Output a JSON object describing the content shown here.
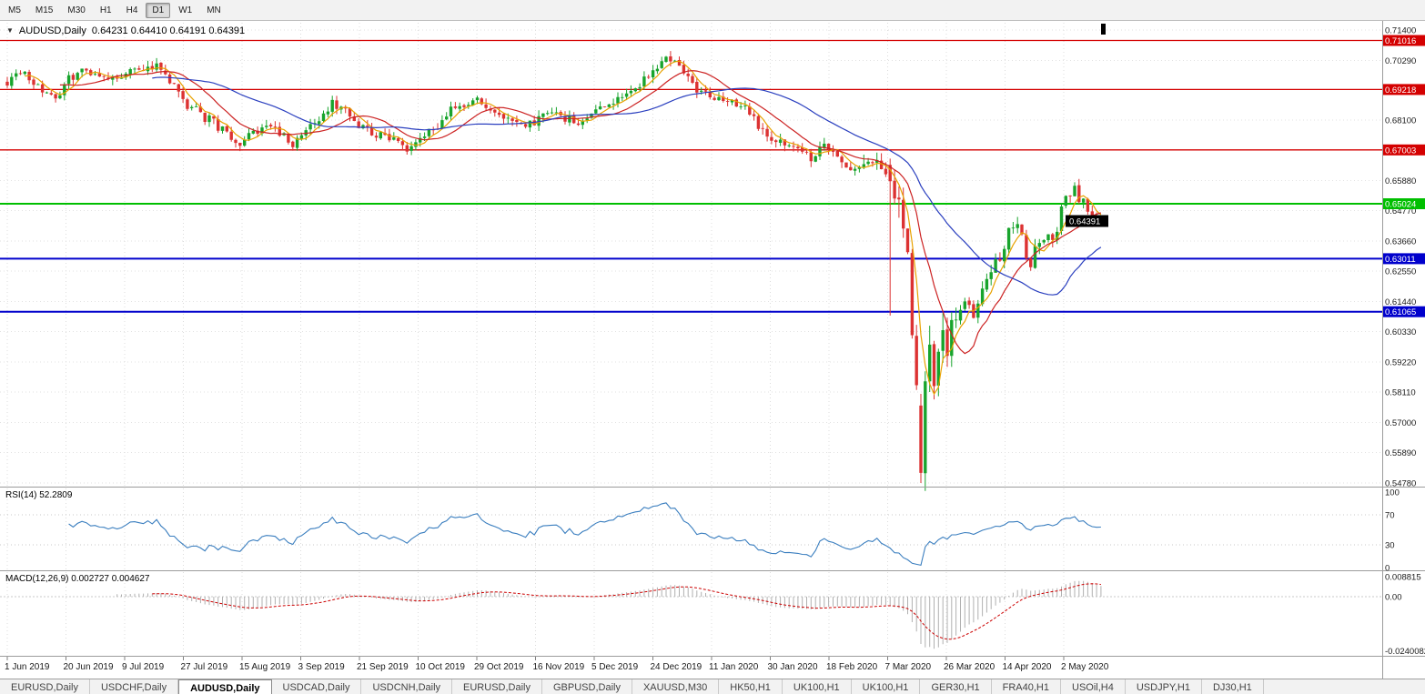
{
  "toolbar": {
    "timeframes": [
      "M5",
      "M15",
      "M30",
      "H1",
      "H4",
      "D1",
      "W1",
      "MN"
    ],
    "active": "D1"
  },
  "chart": {
    "title_symbol": "AUDUSD,Daily",
    "title_ohlc": "0.64231 0.64410 0.64191 0.64391",
    "current_price": "0.64391"
  },
  "rsi": {
    "label": "RSI(14) 52.2809",
    "value": 52.2809,
    "ticks": [
      {
        "label": "100",
        "value": 100
      },
      {
        "label": "70",
        "value": 70
      },
      {
        "label": "30",
        "value": 30
      },
      {
        "label": "0",
        "value": 0
      }
    ],
    "guides": [
      70,
      30
    ]
  },
  "macd": {
    "label": "MACD(12,26,9) 0.002727 0.004627",
    "ticks": [
      {
        "label": "0.008815",
        "value": 0.008815
      },
      {
        "label": "0.00",
        "value": 0
      },
      {
        "label": "-0.0240082",
        "value": -0.0240082
      }
    ]
  },
  "colors": {
    "up": "#18a42c",
    "down": "#dc3232",
    "ma_fast": "#e8a200",
    "ma_mid": "#cc2222",
    "ma_slow": "#2a3fbf",
    "rsi": "#3a7ebf",
    "macd_hist": "#b0b0b0",
    "macd_signal": "#cc0000",
    "grid": "#e2e2e2",
    "level_red": "#d40000",
    "level_green": "#00bf00",
    "level_blue": "#0000cc"
  },
  "chart_data": {
    "type": "candlestick",
    "symbol": "AUDUSD",
    "timeframe": "Daily",
    "bars": 250,
    "y_range": [
      0.5478,
      0.714
    ],
    "y_ticks": [
      "0.71400",
      "0.70290",
      "0.68100",
      "0.65880",
      "0.64770",
      "0.63660",
      "0.62550",
      "0.61440",
      "0.60330",
      "0.59220",
      "0.58110",
      "0.57000",
      "0.55890",
      "0.54780"
    ],
    "x_labels": [
      "1 Jun 2019",
      "20 Jun 2019",
      "9 Jul 2019",
      "27 Jul 2019",
      "15 Aug 2019",
      "3 Sep 2019",
      "21 Sep 2019",
      "10 Oct 2019",
      "29 Oct 2019",
      "16 Nov 2019",
      "5 Dec 2019",
      "24 Dec 2019",
      "11 Jan 2020",
      "30 Jan 2020",
      "18 Feb 2020",
      "7 Mar 2020",
      "26 Mar 2020",
      "14 Apr 2020",
      "2 May 2020"
    ],
    "current_ohlc": {
      "open": 0.64231,
      "high": 0.6441,
      "low": 0.64191,
      "close": 0.64391
    },
    "levels": [
      {
        "label": "0.71016",
        "price": 0.71016,
        "color": "#d40000",
        "width": 1.3
      },
      {
        "label": "0.69218",
        "price": 0.69218,
        "color": "#d40000",
        "width": 1.3
      },
      {
        "label": "0.67003",
        "price": 0.67003,
        "color": "#d40000",
        "width": 1.3
      },
      {
        "label": "0.65024",
        "price": 0.65024,
        "color": "#00bf00",
        "width": 2
      },
      {
        "label": "0.63011",
        "price": 0.63011,
        "color": "#0000cc",
        "width": 2
      },
      {
        "label": "0.61065",
        "price": 0.61065,
        "color": "#0000cc",
        "width": 2
      }
    ],
    "moving_averages": [
      {
        "period": 5,
        "color_key": "ma_fast"
      },
      {
        "period": 13,
        "color_key": "ma_mid"
      },
      {
        "period": 34,
        "color_key": "ma_slow"
      }
    ],
    "indicators": [
      {
        "name": "RSI",
        "period": 14,
        "value": 52.2809,
        "range": [
          0,
          100
        ],
        "guides": [
          70,
          30
        ]
      },
      {
        "name": "MACD",
        "params": "12,26,9",
        "macd": 0.002727,
        "signal": 0.004627,
        "scale_max": 0.008815,
        "scale_min": -0.0240082
      }
    ],
    "price_path_anchors": [
      [
        0,
        0.695
      ],
      [
        4,
        0.6985
      ],
      [
        8,
        0.6915
      ],
      [
        11,
        0.689
      ],
      [
        14,
        0.696
      ],
      [
        17,
        0.7
      ],
      [
        20,
        0.6985
      ],
      [
        23,
        0.6945
      ],
      [
        26,
        0.6975
      ],
      [
        29,
        0.7015
      ],
      [
        32,
        0.7
      ],
      [
        34,
        0.7015
      ],
      [
        37,
        0.695
      ],
      [
        40,
        0.688
      ],
      [
        44,
        0.683
      ],
      [
        47,
        0.68
      ],
      [
        50,
        0.676
      ],
      [
        53,
        0.6725
      ],
      [
        56,
        0.676
      ],
      [
        59,
        0.679
      ],
      [
        62,
        0.6765
      ],
      [
        65,
        0.6725
      ],
      [
        68,
        0.676
      ],
      [
        71,
        0.6815
      ],
      [
        74,
        0.687
      ],
      [
        77,
        0.684
      ],
      [
        80,
        0.679
      ],
      [
        84,
        0.6755
      ],
      [
        88,
        0.6735
      ],
      [
        91,
        0.6705
      ],
      [
        94,
        0.6745
      ],
      [
        97,
        0.6775
      ],
      [
        100,
        0.683
      ],
      [
        103,
        0.6865
      ],
      [
        106,
        0.689
      ],
      [
        109,
        0.687
      ],
      [
        112,
        0.684
      ],
      [
        115,
        0.6805
      ],
      [
        118,
        0.679
      ],
      [
        121,
        0.681
      ],
      [
        124,
        0.683
      ],
      [
        127,
        0.6815
      ],
      [
        130,
        0.6805
      ],
      [
        133,
        0.684
      ],
      [
        136,
        0.686
      ],
      [
        139,
        0.688
      ],
      [
        142,
        0.692
      ],
      [
        145,
        0.696
      ],
      [
        148,
        0.7
      ],
      [
        150,
        0.703
      ],
      [
        153,
        0.7005
      ],
      [
        156,
        0.6935
      ],
      [
        159,
        0.6905
      ],
      [
        162,
        0.6885
      ],
      [
        165,
        0.687
      ],
      [
        168,
        0.685
      ],
      [
        171,
        0.679
      ],
      [
        174,
        0.6745
      ],
      [
        177,
        0.671
      ],
      [
        180,
        0.669
      ],
      [
        183,
        0.667
      ],
      [
        186,
        0.6715
      ],
      [
        189,
        0.666
      ],
      [
        192,
        0.6625
      ],
      [
        195,
        0.664
      ],
      [
        198,
        0.6655
      ],
      [
        200,
        0.661
      ],
      [
        201,
        0.6585
      ],
      [
        202,
        0.652
      ],
      [
        203,
        0.648
      ],
      [
        204,
        0.639
      ],
      [
        205,
        0.627
      ],
      [
        206,
        0.607
      ],
      [
        207,
        0.58
      ],
      [
        208,
        0.5515
      ],
      [
        209,
        0.582
      ],
      [
        210,
        0.593
      ],
      [
        211,
        0.58
      ],
      [
        212,
        0.598
      ],
      [
        213,
        0.605
      ],
      [
        214,
        0.597
      ],
      [
        216,
        0.608
      ],
      [
        218,
        0.615
      ],
      [
        220,
        0.61
      ],
      [
        222,
        0.618
      ],
      [
        224,
        0.625
      ],
      [
        226,
        0.631
      ],
      [
        228,
        0.64
      ],
      [
        230,
        0.645
      ],
      [
        231,
        0.638
      ],
      [
        232,
        0.63
      ],
      [
        233,
        0.626
      ],
      [
        234,
        0.633
      ],
      [
        236,
        0.639
      ],
      [
        238,
        0.636
      ],
      [
        240,
        0.648
      ],
      [
        242,
        0.654
      ],
      [
        243,
        0.656
      ],
      [
        244,
        0.65
      ],
      [
        245,
        0.652
      ],
      [
        246,
        0.647
      ],
      [
        247,
        0.645
      ],
      [
        248,
        0.643
      ],
      [
        249,
        0.6439
      ]
    ]
  },
  "tabs": {
    "items": [
      "EURUSD,Daily",
      "USDCHF,Daily",
      "AUDUSD,Daily",
      "USDCAD,Daily",
      "USDCNH,Daily",
      "EURUSD,Daily",
      "GBPUSD,Daily",
      "XAUUSD,M30",
      "HK50,H1",
      "UK100,H1",
      "UK100,H1",
      "GER30,H1",
      "FRA40,H1",
      "USOil,H4",
      "USDJPY,H1",
      "DJ30,H1"
    ],
    "active_index": 2
  }
}
